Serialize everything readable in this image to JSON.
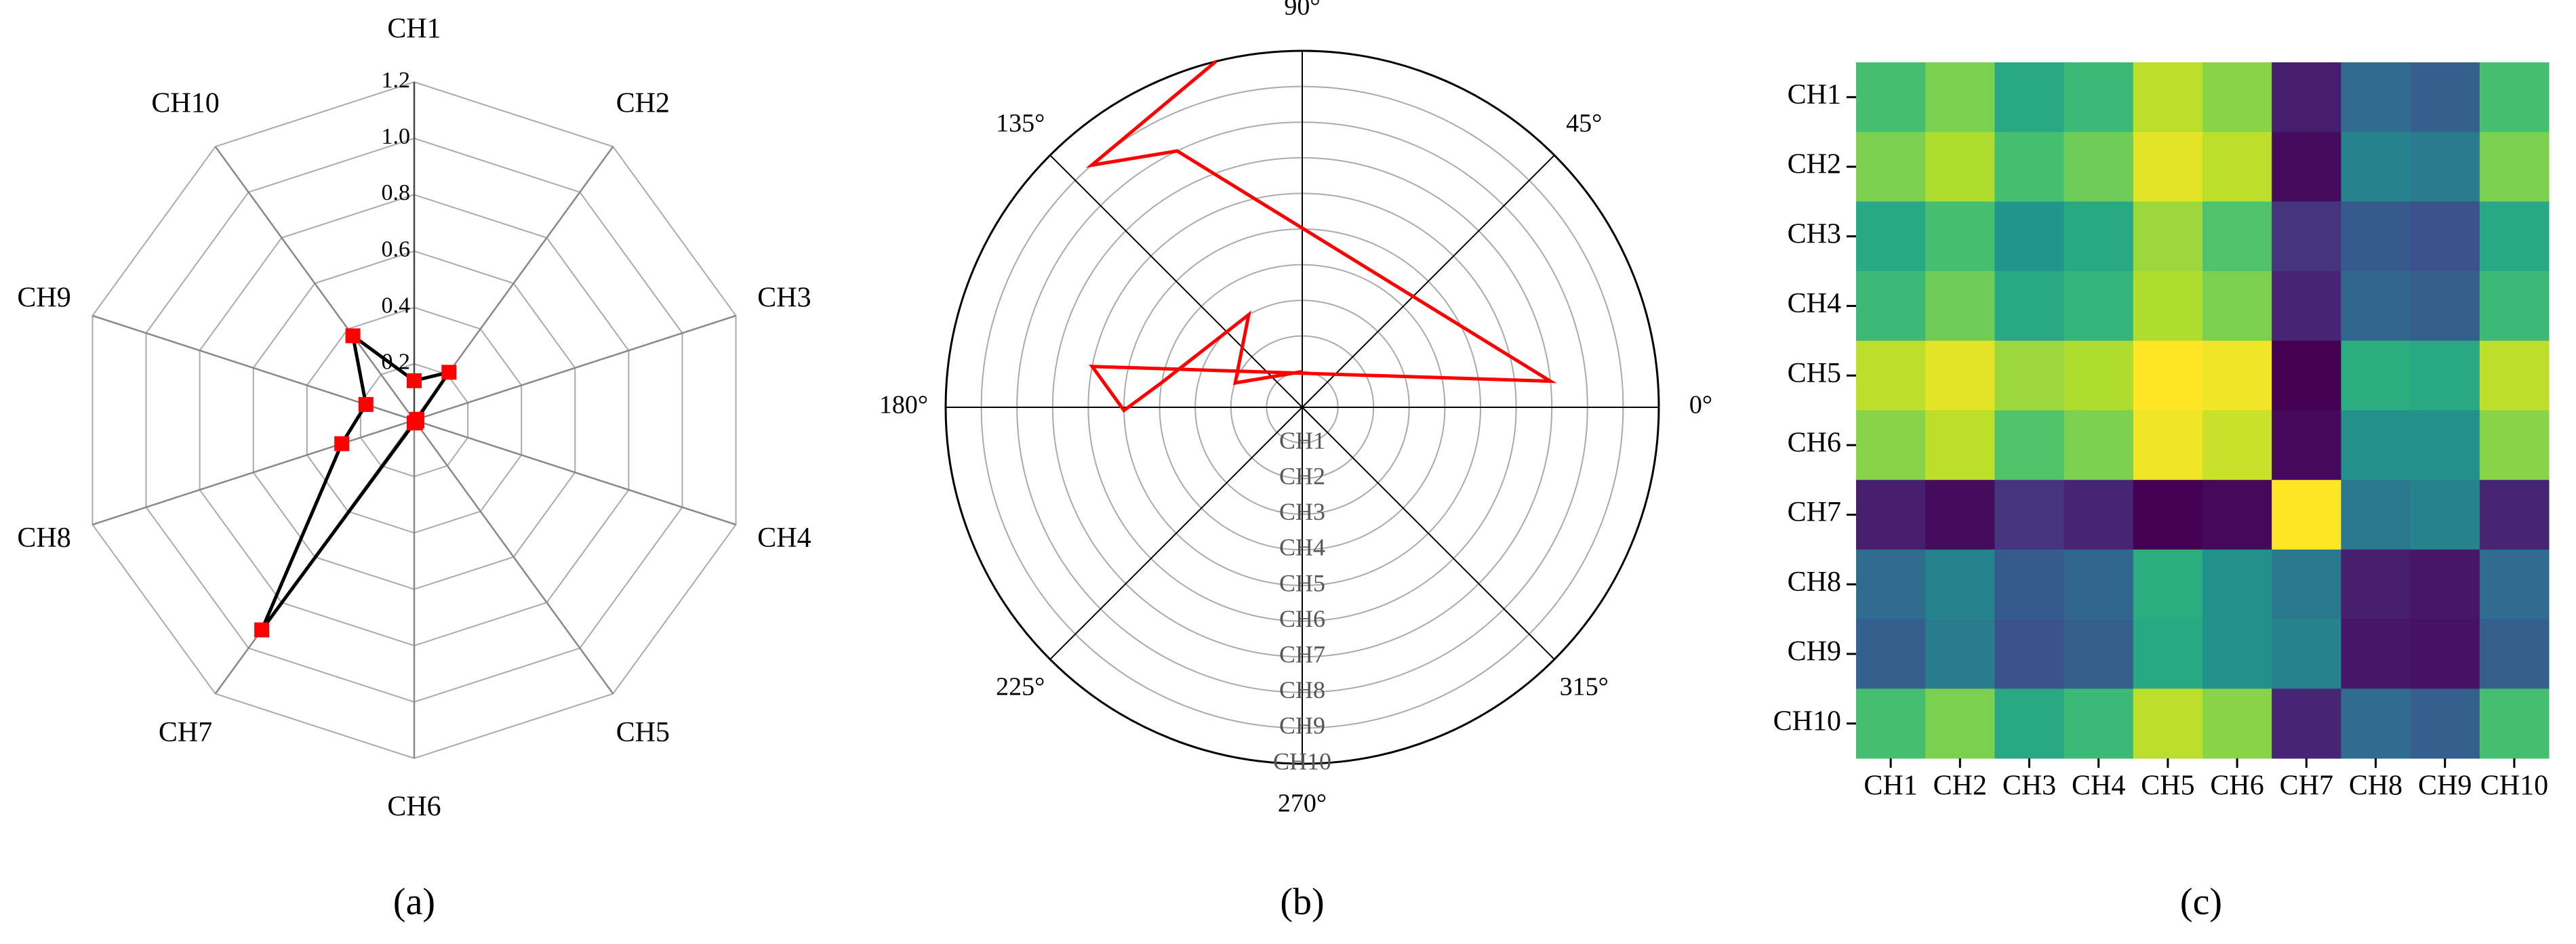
{
  "chart_data": [
    {
      "type": "radar",
      "caption": "(a)",
      "categories": [
        "CH1",
        "CH2",
        "CH3",
        "CH4",
        "CH5",
        "CH6",
        "CH7",
        "CH8",
        "CH9",
        "CH10"
      ],
      "values": [
        0.14,
        0.21,
        0.01,
        0.01,
        0.01,
        0.01,
        0.92,
        0.27,
        0.18,
        0.37
      ],
      "color": "#000000",
      "marker_color": "#ff0000",
      "ylim": [
        0,
        1.2
      ],
      "yticks": [
        0.2,
        0.4,
        0.6,
        0.8,
        {
          "value": 1,
          "label": "1.0"
        },
        1.2
      ]
    },
    {
      "type": "polar",
      "caption": "(b)",
      "color": "#ff0000",
      "theta": [
        104,
        131,
        116,
        6,
        169,
        181,
        170,
        120,
        160,
        90
      ],
      "r": [
        10,
        9,
        8,
        7,
        6,
        5,
        4,
        3,
        2,
        1
      ],
      "rlim": [
        0,
        10
      ],
      "rticks": [
        {
          "value": 1,
          "label": "CH1"
        },
        {
          "value": 2,
          "label": "CH2"
        },
        {
          "value": 3,
          "label": "CH3"
        },
        {
          "value": 4,
          "label": "CH4"
        },
        {
          "value": 5,
          "label": "CH5"
        },
        {
          "value": 6,
          "label": "CH6"
        },
        {
          "value": 7,
          "label": "CH7"
        },
        {
          "value": 8,
          "label": "CH8"
        },
        {
          "value": 9,
          "label": "CH9"
        },
        {
          "value": 10,
          "label": "CH10"
        }
      ],
      "thetaticks": [
        {
          "value": 0,
          "label": "0°"
        },
        {
          "value": 45,
          "label": "45°"
        },
        {
          "value": 90,
          "label": "90°"
        },
        {
          "value": 135,
          "label": "135°"
        },
        {
          "value": 180,
          "label": "180°"
        },
        {
          "value": 225,
          "label": "225°"
        },
        {
          "value": 270,
          "label": "270°"
        },
        {
          "value": 315,
          "label": "315°"
        }
      ]
    },
    {
      "type": "heatmap",
      "caption": "(c)",
      "colormap": "viridis",
      "zlim": [
        0,
        1
      ],
      "categories": [
        "CH1",
        "CH2",
        "CH3",
        "CH4",
        "CH5",
        "CH6",
        "CH7",
        "CH8",
        "CH9",
        "CH10"
      ],
      "values": [
        [
          0.7,
          0.8,
          0.6,
          0.68,
          0.9,
          0.82,
          0.08,
          0.35,
          0.3,
          0.7
        ],
        [
          0.8,
          0.88,
          0.7,
          0.78,
          0.96,
          0.9,
          0.03,
          0.45,
          0.42,
          0.8
        ],
        [
          0.6,
          0.7,
          0.52,
          0.6,
          0.85,
          0.72,
          0.15,
          0.28,
          0.25,
          0.6
        ],
        [
          0.68,
          0.78,
          0.6,
          0.66,
          0.88,
          0.8,
          0.1,
          0.33,
          0.3,
          0.68
        ],
        [
          0.9,
          0.96,
          0.85,
          0.88,
          1,
          0.98,
          0,
          0.62,
          0.6,
          0.9
        ],
        [
          0.82,
          0.9,
          0.72,
          0.8,
          0.98,
          0.92,
          0.02,
          0.5,
          0.5,
          0.82
        ],
        [
          0.08,
          0.03,
          0.15,
          0.1,
          0,
          0.02,
          1,
          0.4,
          0.45,
          0.1
        ],
        [
          0.35,
          0.45,
          0.28,
          0.33,
          0.62,
          0.5,
          0.4,
          0.08,
          0.06,
          0.35
        ],
        [
          0.3,
          0.42,
          0.25,
          0.3,
          0.6,
          0.5,
          0.45,
          0.06,
          0.05,
          0.3
        ],
        [
          0.7,
          0.8,
          0.6,
          0.68,
          0.9,
          0.82,
          0.1,
          0.35,
          0.3,
          0.7
        ]
      ]
    }
  ]
}
